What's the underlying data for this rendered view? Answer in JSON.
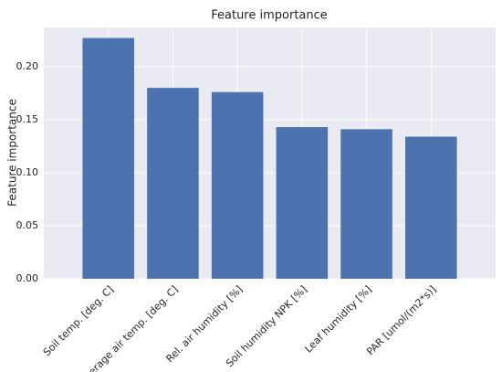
{
  "chart_data": {
    "type": "bar",
    "title": "Feature importance",
    "y_label": "Feature importance",
    "categories": [
      "Soil temp. [deg. C]",
      "Average air temp. [deg. C]",
      "Rel. air humidity [%]",
      "Soil humidity NPK [%]",
      "Leaf humidity [%]",
      "PAR [umol/(m2*s)]"
    ],
    "values": [
      0.227,
      0.18,
      0.176,
      0.143,
      0.141,
      0.134
    ],
    "color": "#4c72b0",
    "ylim": [
      0,
      0.237
    ],
    "yticks": [
      {
        "value": 0,
        "label": "0.00"
      },
      {
        "value": 0.05,
        "label": "0.05"
      },
      {
        "value": 0.1,
        "label": "0.10"
      },
      {
        "value": 0.15,
        "label": "0.15"
      },
      {
        "value": 0.2,
        "label": "0.20"
      }
    ],
    "grid": true
  }
}
